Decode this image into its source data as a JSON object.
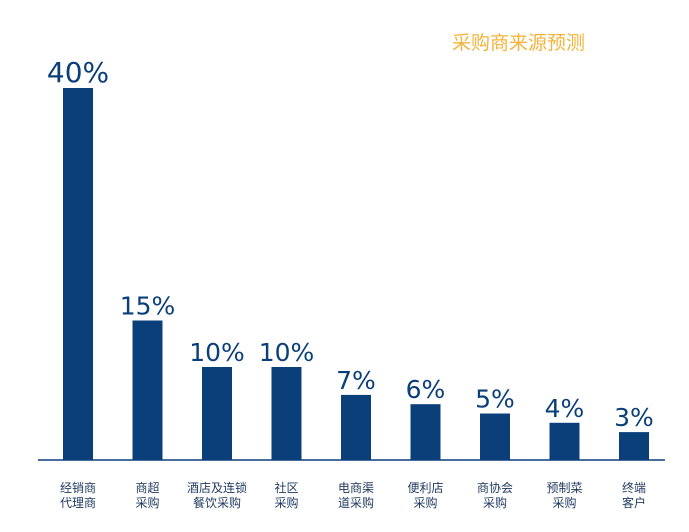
{
  "chart_data": {
    "type": "bar",
    "title": "采购商来源预测",
    "categories": [
      [
        "经销商",
        "代理商"
      ],
      [
        "商超",
        "采购"
      ],
      [
        "酒店及连锁",
        "餐饮采购"
      ],
      [
        "社区",
        "采购"
      ],
      [
        "电商渠",
        "道采购"
      ],
      [
        "便利店",
        "采购"
      ],
      [
        "商协会",
        "采购"
      ],
      [
        "预制菜",
        "采购"
      ],
      [
        "终端",
        "客户"
      ]
    ],
    "values": [
      40,
      15,
      10,
      10,
      7,
      6,
      5,
      4,
      3
    ],
    "value_labels": [
      "40%",
      "15%",
      "10%",
      "10%",
      "7%",
      "6%",
      "5%",
      "4%",
      "3%"
    ],
    "unit": "%",
    "ylim": [
      0,
      40
    ],
    "grid": false,
    "colors": {
      "bar": "#0b3f7a",
      "label": "#0b3f7a",
      "title": "#f4b43b",
      "axis": "#0b3f7a"
    }
  }
}
